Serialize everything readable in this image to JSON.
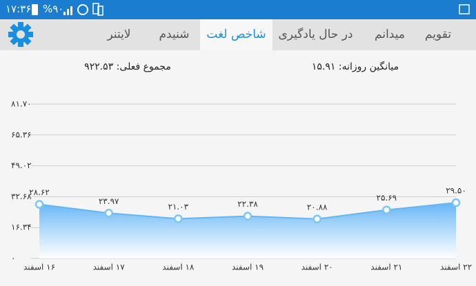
{
  "status_bar": {
    "time": "۱۷:۳۶",
    "battery": "%۹۰"
  },
  "tabs": [
    "تقویم",
    "میدانم",
    "در حال یادگیری",
    "شاخص لغت",
    "شنیدم",
    "لایتنر"
  ],
  "active_tab": 3,
  "summary": {
    "daily_average": "میانگین روزانه: ۱۵.۹۱",
    "actual_total": "مجموع فعلی: ۹۲۲.۵۳"
  },
  "chart_data": {
    "type": "area",
    "categories": [
      "۱۶ اسفند",
      "۱۷ اسفند",
      "۱۸ اسفند",
      "۱۹ اسفند",
      "۲۰ اسفند",
      "۲۱ اسفند",
      "۲۲ اسفند"
    ],
    "values": [
      28.62,
      23.97,
      21.03,
      22.38,
      20.88,
      25.69,
      29.5
    ],
    "value_labels": [
      "۲۸.۶۲",
      "۲۳.۹۷",
      "۲۱.۰۳",
      "۲۲.۳۸",
      "۲۰.۸۸",
      "۲۵.۶۹",
      "۲۹.۵۰"
    ],
    "color": "#64b5f6",
    "ylim": [
      0,
      81.7
    ],
    "yticks": [
      {
        "value": 0,
        "label": "۰"
      },
      {
        "value": 16.34,
        "label": "۱۶.۳۴"
      },
      {
        "value": 32.68,
        "label": "۳۲.۶۸"
      },
      {
        "value": 49.02,
        "label": "۴۹.۰۲"
      },
      {
        "value": 65.36,
        "label": "۶۵.۳۶"
      },
      {
        "value": 81.7,
        "label": "۸۱.۷۰"
      }
    ],
    "grid": true
  }
}
